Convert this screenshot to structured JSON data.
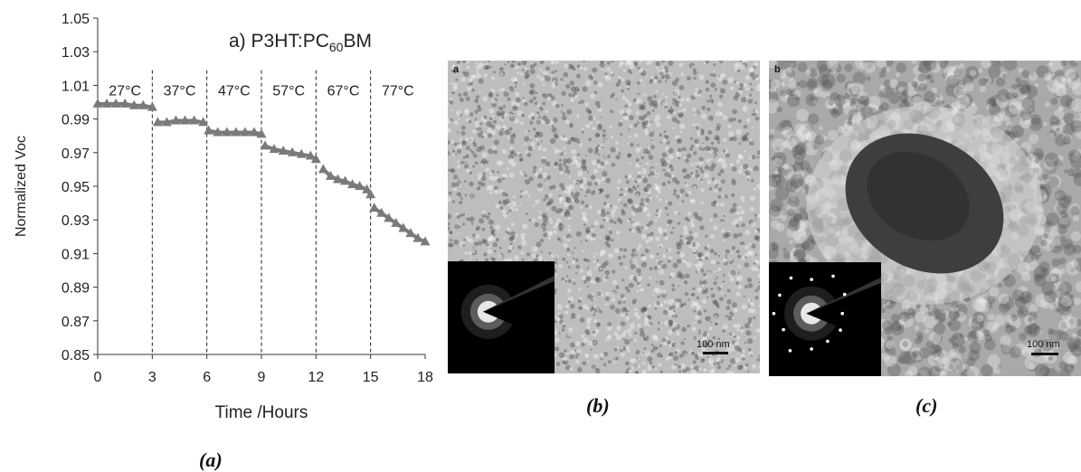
{
  "chart_data": {
    "type": "scatter",
    "title": "a) P3HT:PC",
    "title_sub": "60",
    "title_suffix": "BM",
    "xlabel": "Time /Hours",
    "ylabel": "Normalized Voc",
    "xlim": [
      0,
      18
    ],
    "ylim": [
      0.85,
      1.05
    ],
    "x_ticks": [
      "0",
      "3",
      "6",
      "9",
      "12",
      "15",
      "18"
    ],
    "y_ticks": [
      "0.85",
      "0.87",
      "0.89",
      "0.91",
      "0.93",
      "0.95",
      "0.97",
      "0.99",
      "1.01",
      "1.03",
      "1.05"
    ],
    "marker": "triangle",
    "color": "#7a7a7a",
    "segments": [
      {
        "label": "27°C",
        "x": [
          0,
          0.5,
          1,
          1.5,
          2,
          2.5,
          3
        ],
        "y": [
          0.999,
          0.999,
          0.999,
          0.999,
          0.998,
          0.998,
          0.997
        ]
      },
      {
        "label": "37°C",
        "x": [
          3.3,
          3.8,
          4.3,
          4.8,
          5.3,
          5.8
        ],
        "y": [
          0.988,
          0.988,
          0.989,
          0.989,
          0.989,
          0.988
        ]
      },
      {
        "label": "47°C",
        "x": [
          6.1,
          6.6,
          7.1,
          7.6,
          8.1,
          8.6,
          9
        ],
        "y": [
          0.983,
          0.982,
          0.982,
          0.982,
          0.982,
          0.982,
          0.981
        ]
      },
      {
        "label": "57°C",
        "x": [
          9.2,
          9.7,
          10.2,
          10.7,
          11.2,
          11.7,
          12
        ],
        "y": [
          0.974,
          0.972,
          0.971,
          0.97,
          0.969,
          0.968,
          0.966
        ]
      },
      {
        "label": "67°C",
        "x": [
          12.4,
          12.8,
          13.2,
          13.6,
          14.0,
          14.4,
          14.8,
          15
        ],
        "y": [
          0.96,
          0.956,
          0.954,
          0.953,
          0.951,
          0.95,
          0.948,
          0.945
        ]
      },
      {
        "label": "77°C",
        "x": [
          15.2,
          15.6,
          16.0,
          16.4,
          16.8,
          17.2,
          17.6,
          18
        ],
        "y": [
          0.937,
          0.934,
          0.931,
          0.928,
          0.925,
          0.922,
          0.919,
          0.917
        ]
      }
    ],
    "vlines": [
      3,
      6,
      9,
      12,
      15
    ],
    "grid": false,
    "legend": "none"
  },
  "captions": {
    "a": "(a)",
    "b": "(b)",
    "c": "(c)"
  },
  "panels": {
    "b": {
      "letter": "a",
      "scale": "100 nm"
    },
    "c": {
      "letter": "b",
      "scale": "100 nm"
    }
  },
  "colors": {
    "marker": "#7a7a7a",
    "tem_light": "#c8c8c8",
    "tem_dark": "#4a4a4a"
  }
}
